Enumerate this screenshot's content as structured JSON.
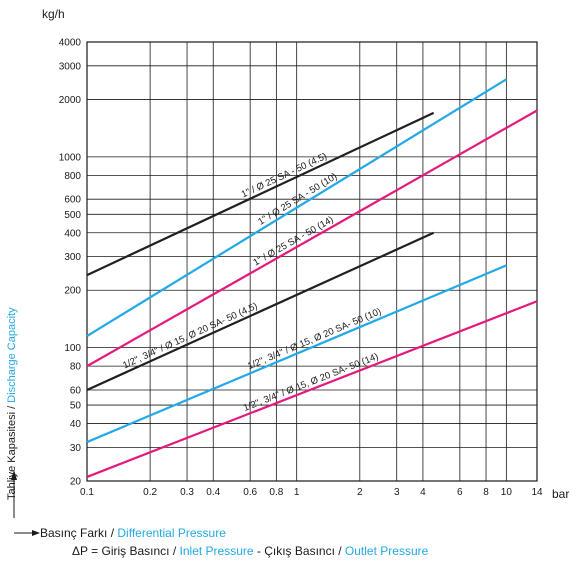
{
  "chart_data": {
    "type": "line",
    "x_unit": "bar",
    "y_unit": "kg/h",
    "x_scale": "log",
    "y_scale": "log",
    "grid": true,
    "x_ticks": [
      "0.1",
      "0.2",
      "0.3",
      "0.4",
      "0.6",
      "0.8",
      "1",
      "2",
      "3",
      "4",
      "6",
      "8",
      "10",
      "14"
    ],
    "y_ticks": [
      "20",
      "30",
      "40",
      "50",
      "60",
      "80",
      "100",
      "200",
      "300",
      "400",
      "500",
      "600",
      "800",
      "1000",
      "2000",
      "3000",
      "4000"
    ],
    "xlim": [
      0.1,
      14
    ],
    "ylim": [
      20,
      4000
    ],
    "series": [
      {
        "name": "1\" / Ø 25 SA - 50 (4.5)",
        "color": "#231f20",
        "x": [
          0.1,
          4.5
        ],
        "y": [
          240,
          1700
        ]
      },
      {
        "name": "1\" / Ø 25 SA - 50 (10)",
        "color": "#22a9e6",
        "x": [
          0.1,
          10
        ],
        "y": [
          115,
          2550
        ]
      },
      {
        "name": "1\" / Ø 25 SA - 50 (14)",
        "color": "#e5197d",
        "x": [
          0.1,
          14
        ],
        "y": [
          80,
          1750
        ]
      },
      {
        "name": "1/2\", 3/4\" / Ø 15, Ø 20 SA- 50 (4.5)",
        "color": "#231f20",
        "x": [
          0.1,
          4.5
        ],
        "y": [
          60,
          400
        ]
      },
      {
        "name": "1/2\", 3/4\" / Ø 15, Ø 20 SA- 50 (10)",
        "color": "#22a9e6",
        "x": [
          0.1,
          10
        ],
        "y": [
          32,
          270
        ]
      },
      {
        "name": "1/2\", 3/4\" / Ø 15, Ø 20 SA- 50 (14)",
        "color": "#e5197d",
        "x": [
          0.1,
          14
        ],
        "y": [
          21,
          175
        ]
      }
    ]
  },
  "axis_title_y": {
    "tr": "Tahliye Kapasitesi",
    "sep": " / ",
    "en": "Discharge Capacity"
  },
  "legend": {
    "line1_tr": "Basınç Farkı",
    "line1_sep": " / ",
    "line1_en": "Differential Pressure",
    "line2_a": "ΔP = Giriş Basıncı",
    "line2_sep1": " / ",
    "line2_b": "Inlet Pressure",
    "line2_sep2": " - Çıkış Basıncı / ",
    "line2_c": "Outlet Pressure"
  },
  "colors": {
    "black": "#231f20",
    "cyan": "#22a9e6",
    "magenta": "#e5197d"
  }
}
